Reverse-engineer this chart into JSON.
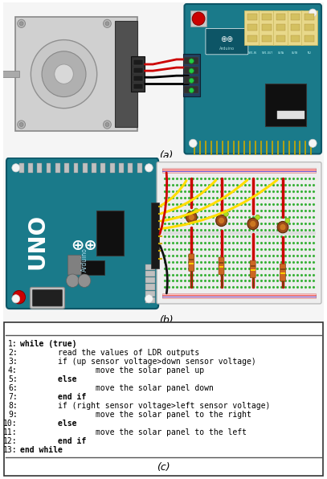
{
  "label_a": "(a)",
  "label_b": "(b)",
  "label_c": "(c)",
  "bg_color": "#ffffff",
  "fig_width": 4.07,
  "fig_height": 5.96,
  "dpi": 100,
  "code_lines": [
    {
      "num": "1:",
      "text": "while (true)",
      "bold_words": [
        "while"
      ]
    },
    {
      "num": "2:",
      "text": "        read the values of LDR outputs",
      "bold_words": []
    },
    {
      "num": "3:",
      "text": "        if (up sensor voltage>down sensor voltage)",
      "bold_words": []
    },
    {
      "num": "4:",
      "text": "                move the solar panel up",
      "bold_words": []
    },
    {
      "num": "5:",
      "text": "        else",
      "bold_words": [
        "else"
      ]
    },
    {
      "num": "6:",
      "text": "                move the solar panel down",
      "bold_words": []
    },
    {
      "num": "7:",
      "text": "        end if",
      "bold_words": [
        "end if"
      ]
    },
    {
      "num": "8:",
      "text": "        if (right sensor voltage>left sensor voltage)",
      "bold_words": []
    },
    {
      "num": "9:",
      "text": "                move the solar panel to the right",
      "bold_words": []
    },
    {
      "num": "10:",
      "text": "        else",
      "bold_words": [
        "else"
      ]
    },
    {
      "num": "11:",
      "text": "                move the solar panel to the left",
      "bold_words": []
    },
    {
      "num": "12:",
      "text": "        end if",
      "bold_words": [
        "end if"
      ]
    },
    {
      "num": "13:",
      "text": "end while",
      "bold_words": [
        "end while"
      ]
    }
  ]
}
